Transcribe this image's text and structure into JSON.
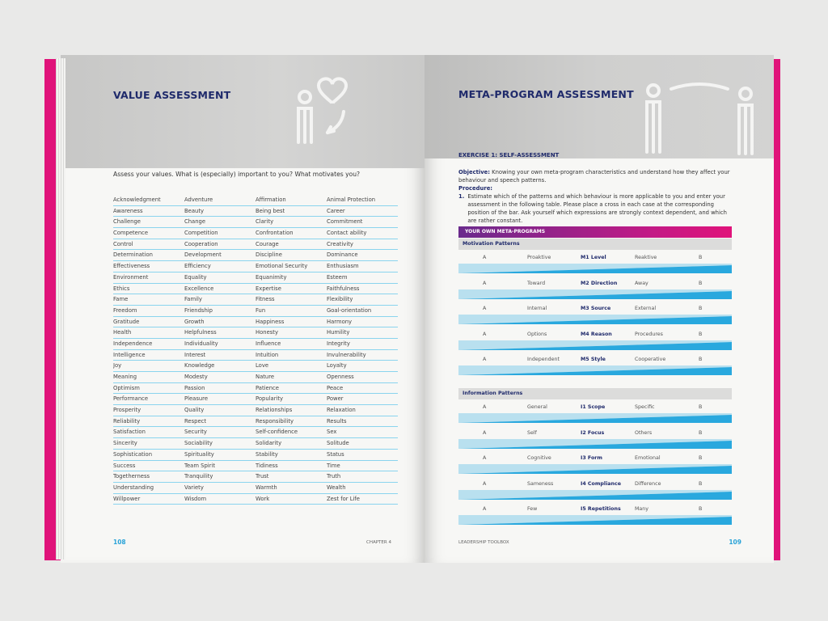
{
  "left_page": {
    "title": "VALUE ASSESSMENT",
    "intro": "Assess your values. What is (especially) important to you? What motivates you?",
    "values": [
      [
        "Acknowledgment",
        "Adventure",
        "Affirmation",
        "Animal Protection"
      ],
      [
        "Awareness",
        "Beauty",
        "Being best",
        "Career"
      ],
      [
        "Challenge",
        "Change",
        "Clarity",
        "Commitment"
      ],
      [
        "Competence",
        "Competition",
        "Confrontation",
        "Contact ability"
      ],
      [
        "Control",
        "Cooperation",
        "Courage",
        "Creativity"
      ],
      [
        "Determination",
        "Development",
        "Discipline",
        "Dominance"
      ],
      [
        "Effectiveness",
        "Efficiency",
        "Emotional Security",
        "Enthusiasm"
      ],
      [
        "Environment",
        "Equality",
        "Equanimity",
        "Esteem"
      ],
      [
        "Ethics",
        "Excellence",
        "Expertise",
        "Faithfulness"
      ],
      [
        "Fame",
        "Family",
        "Fitness",
        "Flexibility"
      ],
      [
        "Freedom",
        "Friendship",
        "Fun",
        "Goal-orientation"
      ],
      [
        "Gratitude",
        "Growth",
        "Happiness",
        "Harmony"
      ],
      [
        "Health",
        "Helpfulness",
        "Honesty",
        "Humility"
      ],
      [
        "Independence",
        "Individuality",
        "Influence",
        "Integrity"
      ],
      [
        "Intelligence",
        "Interest",
        "Intuition",
        "Invulnerability"
      ],
      [
        "Joy",
        "Knowledge",
        "Love",
        "Loyalty"
      ],
      [
        "Meaning",
        "Modesty",
        "Nature",
        "Openness"
      ],
      [
        "Optimism",
        "Passion",
        "Patience",
        "Peace"
      ],
      [
        "Performance",
        "Pleasure",
        "Popularity",
        "Power"
      ],
      [
        "Prosperity",
        "Quality",
        "Relationships",
        "Relaxation"
      ],
      [
        "Reliability",
        "Respect",
        "Responsibility",
        "Results"
      ],
      [
        "Satisfaction",
        "Security",
        "Self-confidence",
        "Sex"
      ],
      [
        "Sincerity",
        "Sociability",
        "Solidarity",
        "Solitude"
      ],
      [
        "Sophistication",
        "Spirituality",
        "Stability",
        "Status"
      ],
      [
        "Success",
        "Team Spirit",
        "Tidiness",
        "Time"
      ],
      [
        "Togetherness",
        "Tranquility",
        "Trust",
        "Truth"
      ],
      [
        "Understanding",
        "Variety",
        "Warmth",
        "Wealth"
      ],
      [
        "Willpower",
        "Wisdom",
        "Work",
        "Zest for Life"
      ]
    ],
    "page_number": "108",
    "chapter": "CHAPTER 4"
  },
  "right_page": {
    "title": "META-PROGRAM ASSESSMENT",
    "exercise": "EXERCISE 1: SELF-ASSESSMENT",
    "objective_label": "Objective:",
    "objective": "Knowing your own meta-program characteristics and understand how they affect your behaviour and speech patterns.",
    "procedure_label": "Procedure:",
    "step_number": "1.",
    "step": "Estimate which of the patterns and which behaviour is more applicable to you and enter your assessment in the following table. Please place a cross in each case at the corresponding position of the bar. Ask yourself which expressions are strongly context dependent, and which are rather constant.",
    "table_title": "YOUR OWN META-PROGRAMS",
    "motivation_title": "Motivation Patterns",
    "information_title": "Information Patterns",
    "motivation": [
      {
        "a": "A",
        "left": "Proaktive",
        "code": "M1 Level",
        "right": "Reaktive",
        "b": "B"
      },
      {
        "a": "A",
        "left": "Toward",
        "code": "M2 Direction",
        "right": "Away",
        "b": "B"
      },
      {
        "a": "A",
        "left": "Internal",
        "code": "M3 Source",
        "right": "External",
        "b": "B"
      },
      {
        "a": "A",
        "left": "Options",
        "code": "M4 Reason",
        "right": "Procedures",
        "b": "B"
      },
      {
        "a": "A",
        "left": "Independent",
        "code": "M5 Style",
        "right": "Cooperative",
        "b": "B"
      }
    ],
    "information": [
      {
        "a": "A",
        "left": "General",
        "code": "I1 Scope",
        "right": "Specific",
        "b": "B"
      },
      {
        "a": "A",
        "left": "Self",
        "code": "I2 Focus",
        "right": "Others",
        "b": "B"
      },
      {
        "a": "A",
        "left": "Cognitive",
        "code": "I3 Form",
        "right": "Emotional",
        "b": "B"
      },
      {
        "a": "A",
        "left": "Sameness",
        "code": "I4 Compliance",
        "right": "Difference",
        "b": "B"
      },
      {
        "a": "A",
        "left": "Few",
        "code": "I5 Repetitions",
        "right": "Many",
        "b": "B"
      }
    ],
    "page_number": "109",
    "book_title": "LEADERSHIP TOOLBOX"
  },
  "colors": {
    "accent_magenta": "#e0137a",
    "title_navy": "#1f2a6b",
    "bar_blue": "#29a8de",
    "bar_light": "#b9e0ef"
  },
  "icons": [
    "person-heart-icon",
    "two-persons-icon"
  ]
}
